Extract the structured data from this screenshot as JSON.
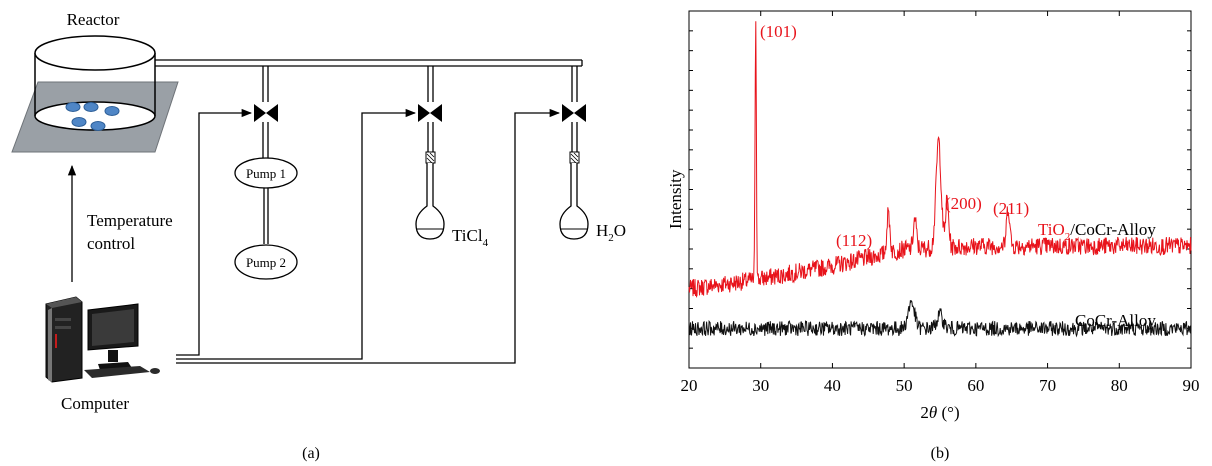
{
  "panel_a": {
    "reactor_label": "Reactor",
    "temperature_label_line1": "Temperature",
    "temperature_label_line2": "control",
    "pump1_label": "Pump 1",
    "pump2_label": "Pump 2",
    "ticl4_label": "TiCl",
    "ticl4_sub": "4",
    "h2o_label_h": "H",
    "h2o_sub": "2",
    "h2o_label_o": "O",
    "computer_label": "Computer",
    "caption": "(a)",
    "colors": {
      "tray": "#9aa0a6",
      "wafer": "#4f86c6"
    }
  },
  "panel_b": {
    "caption": "(b)",
    "ylabel": "Intensity",
    "xlabel_prefix": "2",
    "xlabel_theta": "θ",
    "xlabel_unit": " (°)",
    "annotations": [
      "(101)",
      "(112)",
      "(200)",
      "(211)"
    ],
    "series_label_tio2_prefix": "TiO",
    "series_label_tio2_sub": "2",
    "series_label_tio2_suffix": "/CoCr-Alloy",
    "series_label_cocr": "CoCr-Alloy",
    "colors": {
      "tio2": "#e8131b",
      "cocr": "#111111",
      "annotation": "#e8131b"
    }
  },
  "chart_data": {
    "type": "line",
    "xlabel": "2θ (°)",
    "ylabel": "Intensity",
    "xlim": [
      20,
      90
    ],
    "xticks": [
      20,
      30,
      40,
      50,
      60,
      70,
      80,
      90
    ],
    "y_ticks_labeled": false,
    "grid": false,
    "series": [
      {
        "name": "TiO2/CoCr-Alloy",
        "baseline": [
          [
            20,
            0.17
          ],
          [
            30,
            0.2
          ],
          [
            40,
            0.24
          ],
          [
            50,
            0.29
          ],
          [
            60,
            0.3
          ],
          [
            70,
            0.3
          ],
          [
            80,
            0.3
          ],
          [
            90,
            0.3
          ]
        ],
        "peaks": [
          {
            "x": 29.3,
            "y": 1.0,
            "label": "(101)"
          },
          {
            "x": 47.8,
            "y": 0.4,
            "label": "(112)"
          },
          {
            "x": 51.5,
            "y": 0.38
          },
          {
            "x": 54.8,
            "y": 0.62
          },
          {
            "x": 56.0,
            "y": 0.44,
            "label": "(200)"
          },
          {
            "x": 64.5,
            "y": 0.42,
            "label": "(211)"
          }
        ]
      },
      {
        "name": "CoCr-Alloy",
        "baseline": [
          [
            20,
            0.05
          ],
          [
            90,
            0.05
          ]
        ],
        "peaks": [
          {
            "x": 51.0,
            "y": 0.13
          },
          {
            "x": 55.0,
            "y": 0.09
          }
        ]
      }
    ]
  }
}
